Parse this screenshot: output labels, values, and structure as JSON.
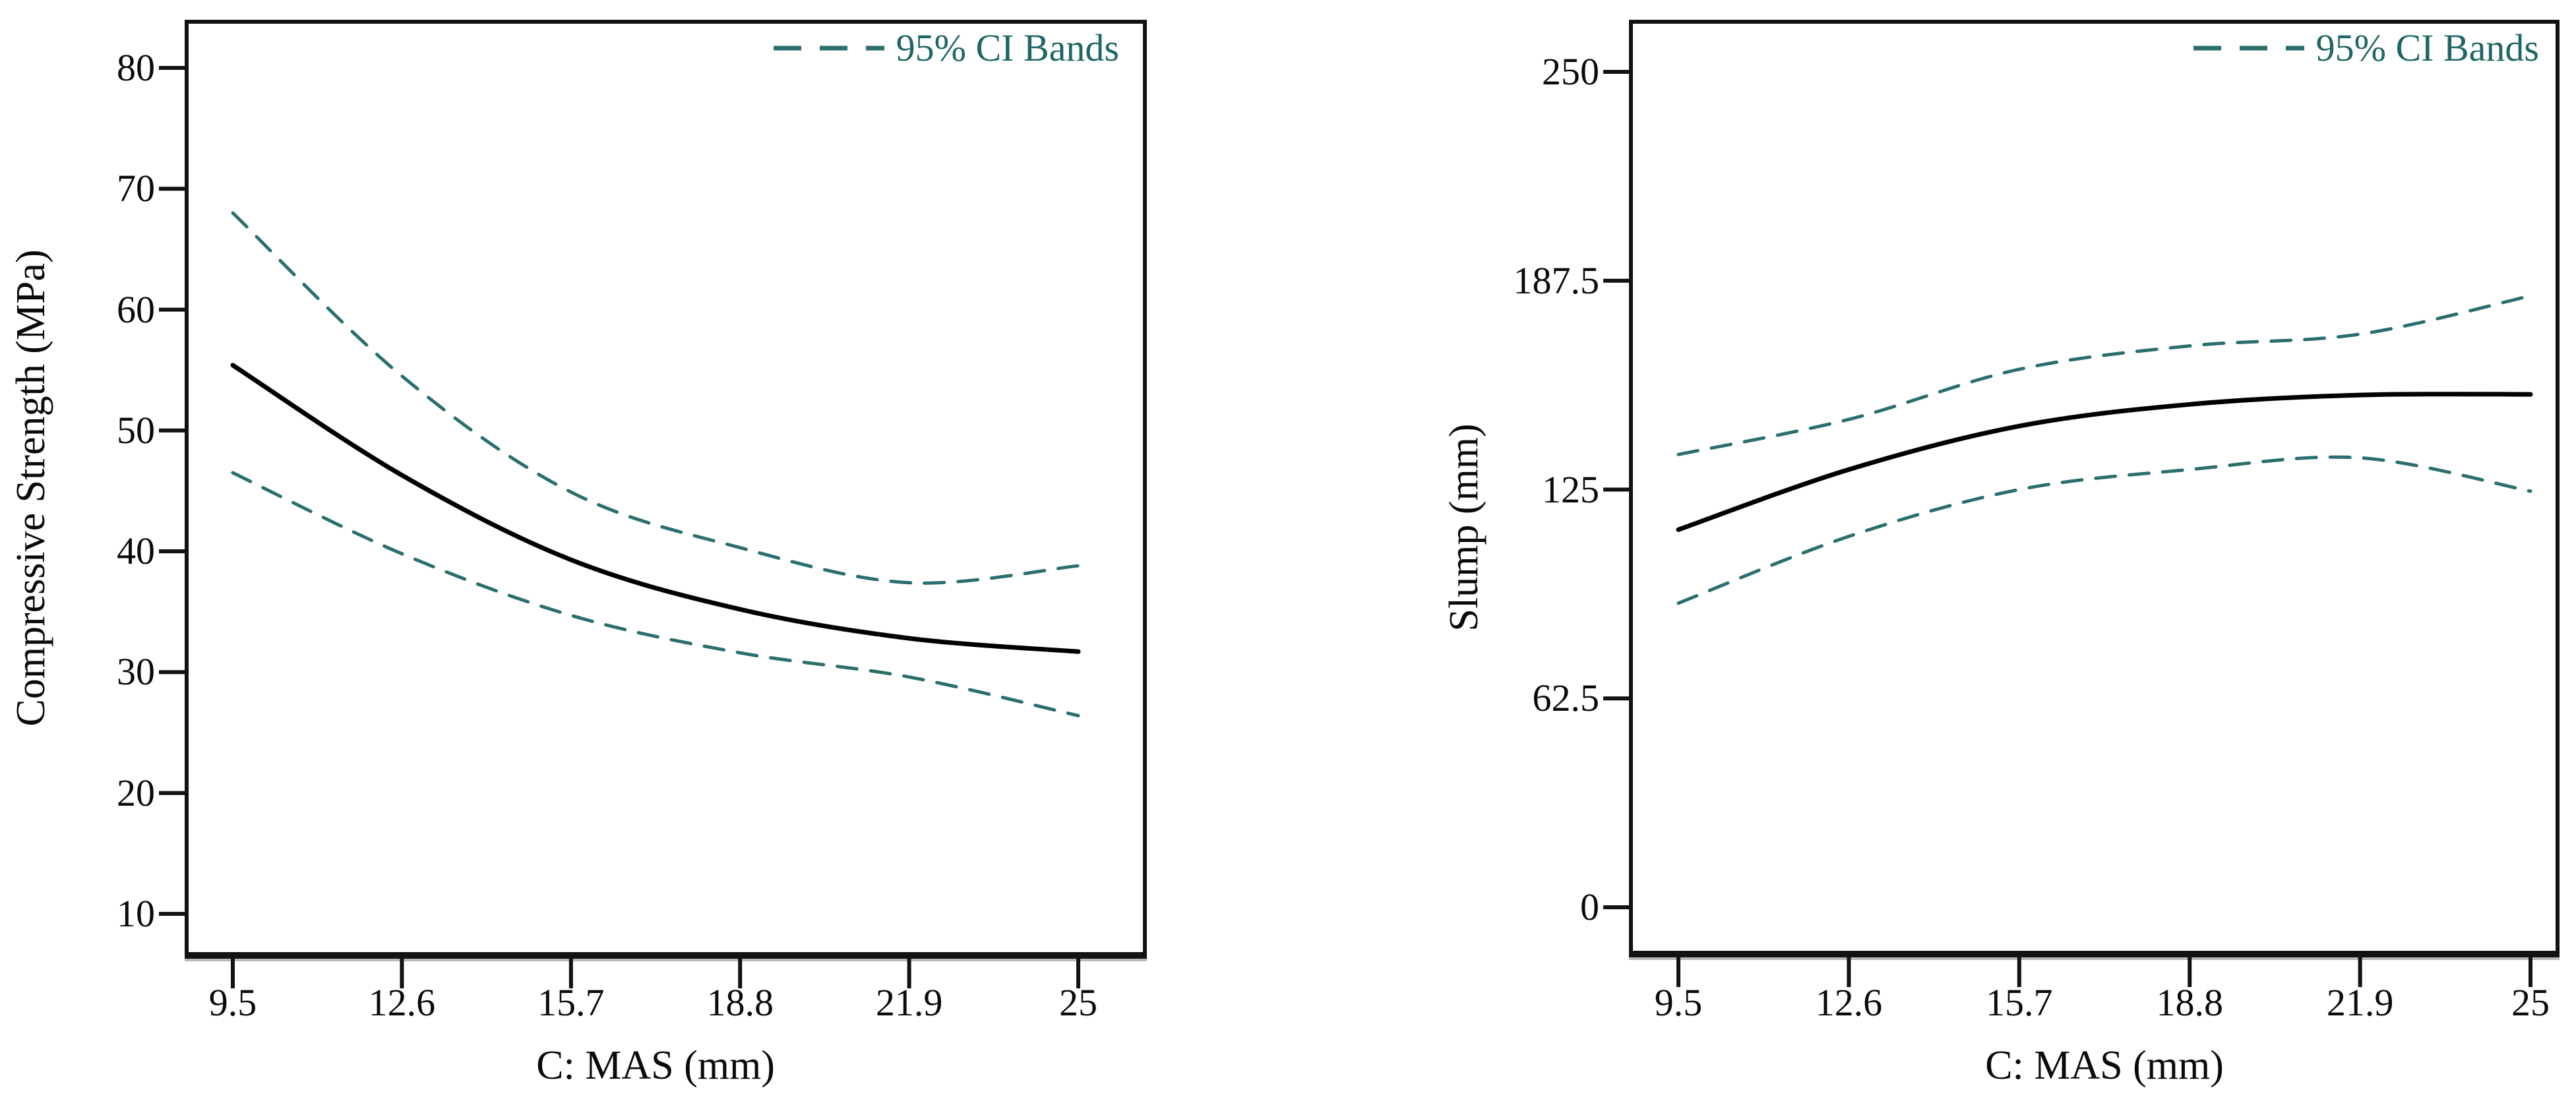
{
  "page": {
    "background": "#ffffff"
  },
  "chart_data": [
    {
      "type": "line",
      "title": "",
      "x_label": "C: MAS (mm)",
      "y_label": "Compressive Strength (MPa)",
      "x_tick_labels": [
        "9.5",
        "12.6",
        "15.7",
        "18.8",
        "21.9",
        "25"
      ],
      "y_tick_labels": [
        "80",
        "70",
        "60",
        "50",
        "40",
        "30",
        "20",
        "10"
      ],
      "x": [
        9.5,
        12.6,
        15.7,
        18.8,
        21.9,
        25
      ],
      "xlim": [
        8.6,
        26.2
      ],
      "ylim": [
        6.5,
        84
      ],
      "grid": false,
      "legend_position": "top-right-inside",
      "series": [
        {
          "name": "mean",
          "style": "solid",
          "color": "#000000",
          "values": [
            55.4,
            46.3,
            39.3,
            35.2,
            32.8,
            31.7
          ]
        },
        {
          "name": "upper_95ci",
          "style": "dashed",
          "color": "#2a6e6e",
          "values": [
            68.0,
            54.5,
            44.9,
            40.3,
            37.4,
            38.8
          ]
        },
        {
          "name": "lower_95ci",
          "style": "dashed",
          "color": "#2a6e6e",
          "values": [
            46.5,
            39.8,
            34.7,
            31.6,
            29.6,
            26.4
          ]
        }
      ],
      "legend": {
        "label": "95% CI Bands",
        "color": "#1f6666"
      }
    },
    {
      "type": "line",
      "title": "",
      "x_label": "C: MAS (mm)",
      "y_label": "Slump (mm)",
      "x_tick_labels": [
        "9.5",
        "12.6",
        "15.7",
        "18.8",
        "21.9",
        "25"
      ],
      "y_tick_labels": [
        "250",
        "187.5",
        "125",
        "62.5",
        "0"
      ],
      "x": [
        9.5,
        12.6,
        15.7,
        18.8,
        21.9,
        25
      ],
      "xlim": [
        8.6,
        25.5
      ],
      "ylim": [
        -14,
        265
      ],
      "grid": false,
      "legend_position": "top-right-inside",
      "series": [
        {
          "name": "mean",
          "style": "solid",
          "color": "#000000",
          "values": [
            113,
            131,
            144,
            150.5,
            153.3,
            153.5
          ]
        },
        {
          "name": "upper_95ci",
          "style": "dashed",
          "color": "#2a6e6e",
          "values": [
            135.5,
            146,
            161,
            168,
            171.5,
            183
          ]
        },
        {
          "name": "lower_95ci",
          "style": "dashed",
          "color": "#2a6e6e",
          "values": [
            91,
            111,
            125,
            131,
            134.5,
            124.5
          ]
        }
      ],
      "legend": {
        "label": "95% CI Bands",
        "color": "#1f6666"
      }
    }
  ]
}
